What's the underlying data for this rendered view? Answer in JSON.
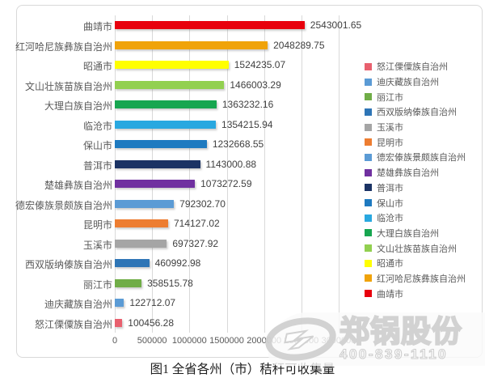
{
  "caption": "图1 全省各州（市）秸秆可收集量",
  "watermark": {
    "brand": "郑锅股份",
    "phone": "400-839-1110",
    "logo": "zg-ellipse-swoosh"
  },
  "colors": {
    "grid": "#d9d9d9",
    "tick_text": "#595959",
    "category_text": "#595959",
    "value_text": "#3f3f3f"
  },
  "chart_data": {
    "type": "bar",
    "orientation": "horizontal",
    "title": "图1 全省各州（市）秸秆可收集量",
    "xlabel": "",
    "ylabel": "",
    "grid": true,
    "legend_position": "right",
    "xlim": [
      0,
      3000000
    ],
    "x_ticks": [
      "0",
      "500000",
      "1000000",
      "1500000",
      "2000000",
      "2500000",
      "3000000"
    ],
    "categories": [
      "曲靖市",
      "红河哈尼族彝族自治州",
      "昭通市",
      "文山壮族苗族自治州",
      "大理白族自治州",
      "临沧市",
      "保山市",
      "普洱市",
      "楚雄彝族自治州",
      "德宏傣族景颇族自治州",
      "昆明市",
      "玉溪市",
      "西双版纳傣族自治州",
      "丽江市",
      "迪庆藏族自治州",
      "怒江傈僳族自治州"
    ],
    "values": [
      2543001.65,
      2048289.75,
      1524235.07,
      1466003.29,
      1363232.16,
      1354215.94,
      1232668.55,
      1143000.88,
      1073272.59,
      792302.7,
      714127.02,
      697327.92,
      460992.98,
      358515.78,
      122712.07,
      100456.28
    ],
    "value_labels": [
      "2543001.65",
      "2048289.75",
      "1524235.07",
      "1466003.29",
      "1363232.16",
      "1354215.94",
      "1232668.55",
      "1143000.88",
      "1073272.59",
      "792302.70",
      "714127.02",
      "697327.92",
      "460992.98",
      "358515.78",
      "122712.07",
      "100456.28"
    ],
    "bar_colors": [
      "#e8000d",
      "#f0a30a",
      "#ffff00",
      "#92d050",
      "#17a650",
      "#29a8e0",
      "#1e7ac0",
      "#1b3364",
      "#7030a0",
      "#5b9bd5",
      "#ed7d31",
      "#a5a5a5",
      "#2e75b6",
      "#70ad47",
      "#5b9bd5",
      "#e8606e"
    ],
    "legend": [
      "怒江傈僳族自治州",
      "迪庆藏族自治州",
      "丽江市",
      "西双版纳傣族自治州",
      "玉溪市",
      "昆明市",
      "德宏傣族景颇族自治州",
      "楚雄彝族自治州",
      "普洱市",
      "保山市",
      "临沧市",
      "大理白族自治州",
      "文山壮族苗族自治州",
      "昭通市",
      "红河哈尼族彝族自治州",
      "曲靖市"
    ]
  }
}
